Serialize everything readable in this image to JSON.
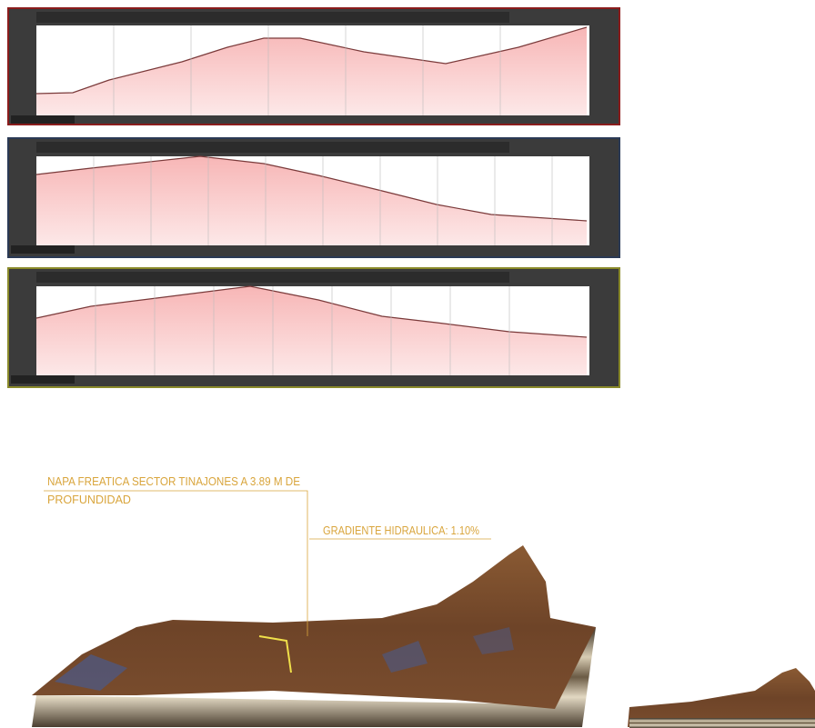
{
  "annotations": {
    "water_table": [
      "NAPA FREATICA  SECTOR  TINAJONES  A 3.89  M DE",
      "PROFUNDIDAD"
    ],
    "gradient": "GRADIENTE  HIDRAULICA: 1.10%"
  }
}
